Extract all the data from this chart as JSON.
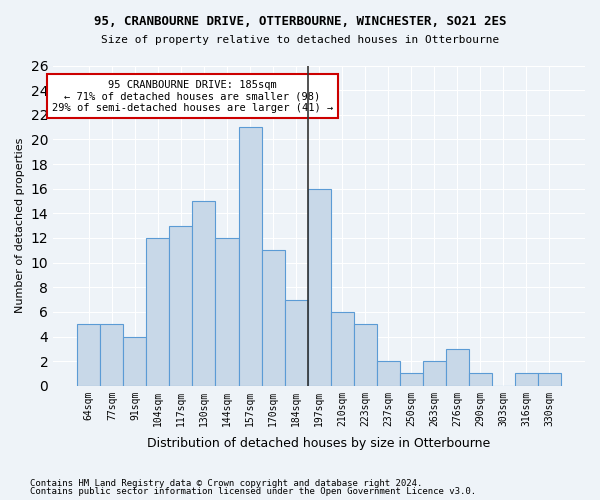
{
  "title": "95, CRANBOURNE DRIVE, OTTERBOURNE, WINCHESTER, SO21 2ES",
  "subtitle": "Size of property relative to detached houses in Otterbourne",
  "xlabel": "Distribution of detached houses by size in Otterbourne",
  "ylabel": "Number of detached properties",
  "categories": [
    "64sqm",
    "77sqm",
    "91sqm",
    "104sqm",
    "117sqm",
    "130sqm",
    "144sqm",
    "157sqm",
    "170sqm",
    "184sqm",
    "197sqm",
    "210sqm",
    "223sqm",
    "237sqm",
    "250sqm",
    "263sqm",
    "276sqm",
    "290sqm",
    "303sqm",
    "316sqm",
    "330sqm"
  ],
  "bar_values": [
    5,
    5,
    4,
    12,
    13,
    15,
    12,
    21,
    11,
    7,
    16,
    6,
    5,
    2,
    1,
    2,
    3,
    1,
    0,
    1,
    1
  ],
  "bar_color": "#c8d8e8",
  "bar_edge_color": "#5b9bd5",
  "vline_x": 9.5,
  "vline_color": "#333333",
  "annotation_box_facecolor": "#ffffff",
  "annotation_border_color": "#cc0000",
  "annotation_text_line1": "95 CRANBOURNE DRIVE: 185sqm",
  "annotation_text_line2": "← 71% of detached houses are smaller (98)",
  "annotation_text_line3": "29% of semi-detached houses are larger (41) →",
  "ylim": [
    0,
    26
  ],
  "yticks": [
    0,
    2,
    4,
    6,
    8,
    10,
    12,
    14,
    16,
    18,
    20,
    22,
    24,
    26
  ],
  "background_color": "#eef3f8",
  "grid_color": "#ffffff",
  "footer_line1": "Contains HM Land Registry data © Crown copyright and database right 2024.",
  "footer_line2": "Contains public sector information licensed under the Open Government Licence v3.0."
}
